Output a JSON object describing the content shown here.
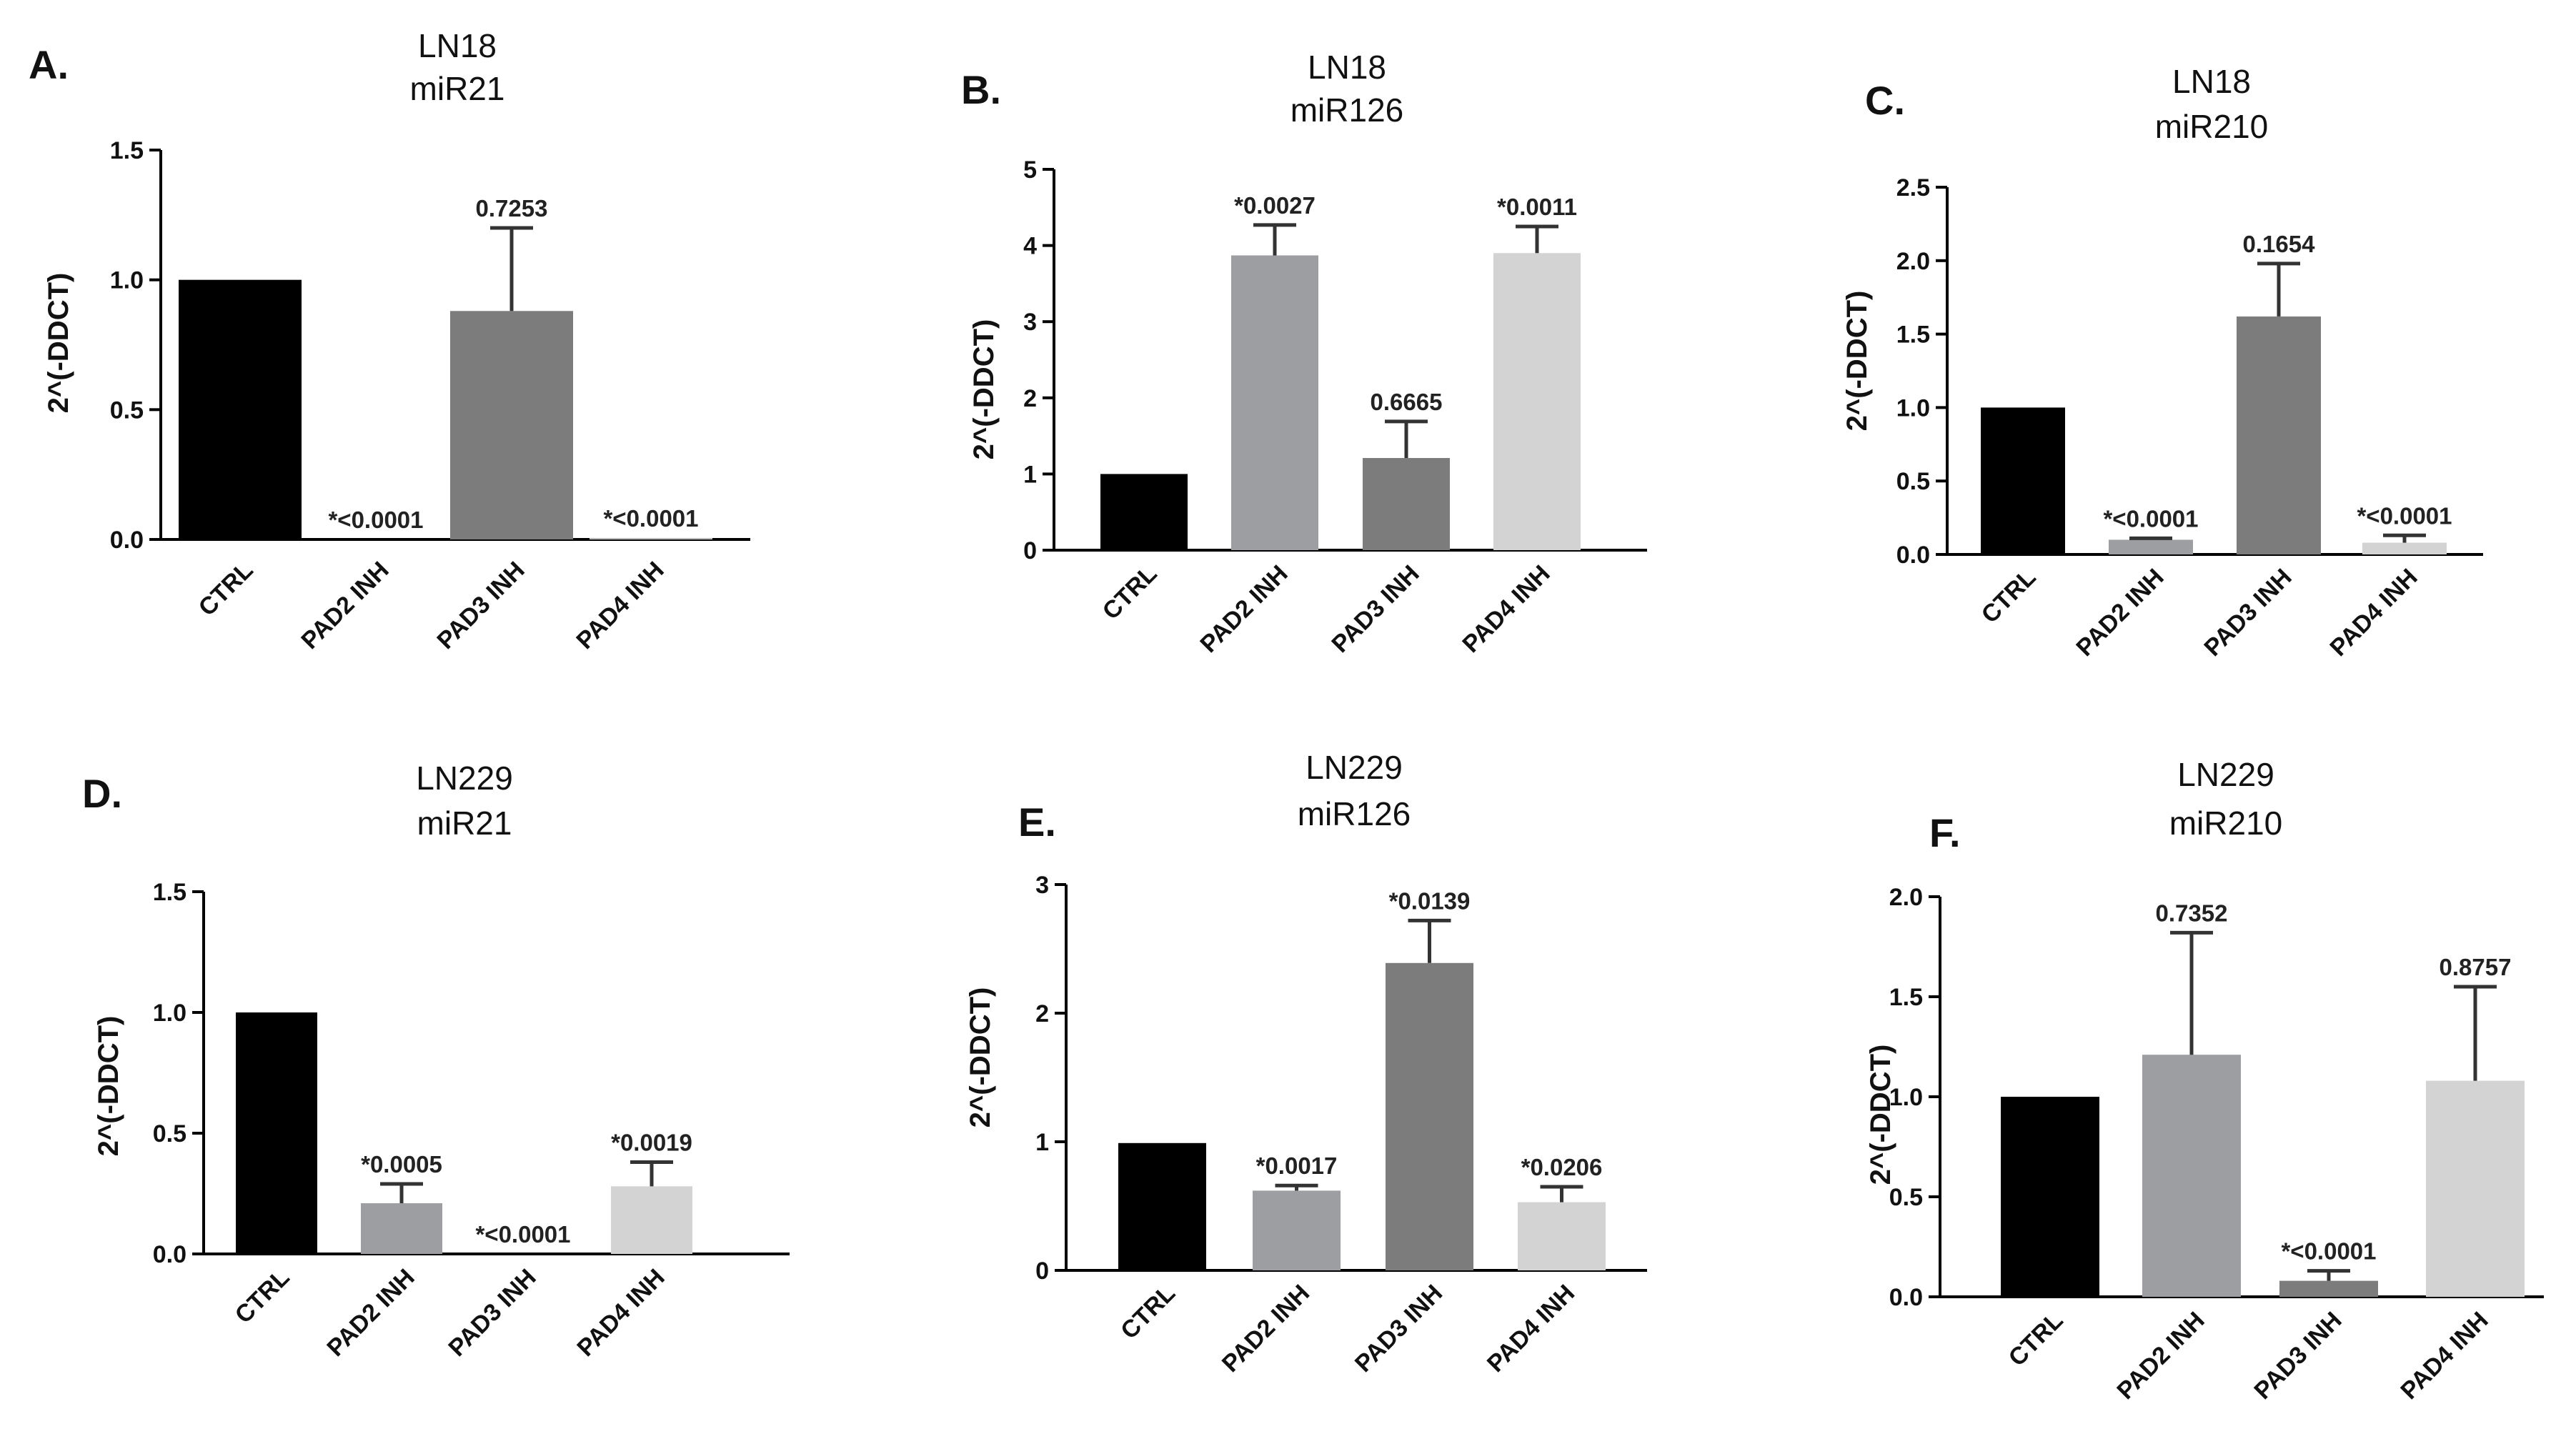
{
  "figure": {
    "background": "#ffffff",
    "axis_color": "#000000"
  },
  "chart_data": [
    {
      "panel": "A.",
      "type": "bar",
      "title": "LN18",
      "subtitle": "miR21",
      "ylabel": "2^(-DDCT)",
      "xlabel": "",
      "ylim": [
        0,
        1.5
      ],
      "yticks": [
        0.0,
        0.5,
        1.0,
        1.5
      ],
      "ytick_labels": [
        "0.0",
        "0.5",
        "1.0",
        "1.5"
      ],
      "categories": [
        "CTRL",
        "PAD2 INH",
        "PAD3 INH",
        "PAD4 INH"
      ],
      "values": [
        1.0,
        0.0,
        0.88,
        0.005
      ],
      "errors": [
        0,
        0,
        0.32,
        0
      ],
      "bar_colors": [
        "#000000",
        "#9d9ea2",
        "#7c7c7c",
        "#d3d3d3"
      ],
      "annotations": [
        "",
        "*<0.0001",
        "0.7253",
        "*<0.0001"
      ]
    },
    {
      "panel": "B.",
      "type": "bar",
      "title": "LN18",
      "subtitle": "miR126",
      "ylabel": "2^(-DDCT)",
      "xlabel": "",
      "ylim": [
        0,
        5
      ],
      "yticks": [
        0,
        1,
        2,
        3,
        4,
        5
      ],
      "ytick_labels": [
        "0",
        "1",
        "2",
        "3",
        "4",
        "5"
      ],
      "categories": [
        "CTRL",
        "PAD2 INH",
        "PAD3 INH",
        "PAD4 INH"
      ],
      "values": [
        1.0,
        3.87,
        1.21,
        3.9
      ],
      "errors": [
        0,
        0.4,
        0.48,
        0.35
      ],
      "bar_colors": [
        "#000000",
        "#9d9ea2",
        "#7c7c7c",
        "#d3d3d3"
      ],
      "annotations": [
        "",
        "*0.0027",
        "0.6665",
        "*0.0011"
      ]
    },
    {
      "panel": "C.",
      "type": "bar",
      "title": "LN18",
      "subtitle": "miR210",
      "ylabel": "2^(-DDCT)",
      "xlabel": "",
      "ylim": [
        0,
        2.5
      ],
      "yticks": [
        0.0,
        0.5,
        1.0,
        1.5,
        2.0,
        2.5
      ],
      "ytick_labels": [
        "0.0",
        "0.5",
        "1.0",
        "1.5",
        "2.0",
        "2.5"
      ],
      "categories": [
        "CTRL",
        "PAD2 INH",
        "PAD3 INH",
        "PAD4 INH"
      ],
      "values": [
        1.0,
        0.1,
        1.62,
        0.08
      ],
      "errors": [
        0,
        0.01,
        0.36,
        0.05
      ],
      "bar_colors": [
        "#000000",
        "#9d9ea2",
        "#7c7c7c",
        "#d3d3d3"
      ],
      "annotations": [
        "",
        "*<0.0001",
        "0.1654",
        "*<0.0001"
      ]
    },
    {
      "panel": "D.",
      "type": "bar",
      "title": "LN229",
      "subtitle": "miR21",
      "ylabel": "2^(-DDCT)",
      "xlabel": "",
      "ylim": [
        0,
        1.5
      ],
      "yticks": [
        0.0,
        0.5,
        1.0,
        1.5
      ],
      "ytick_labels": [
        "0.0",
        "0.5",
        "1.0",
        "1.5"
      ],
      "categories": [
        "CTRL",
        "PAD2 INH",
        "PAD3 INH",
        "PAD4 INH"
      ],
      "values": [
        1.0,
        0.21,
        0.0,
        0.28
      ],
      "errors": [
        0,
        0.08,
        0,
        0.1
      ],
      "bar_colors": [
        "#000000",
        "#9d9ea2",
        "#7c7c7c",
        "#d3d3d3"
      ],
      "annotations": [
        "",
        "*0.0005",
        "*<0.0001",
        "*0.0019"
      ]
    },
    {
      "panel": "E.",
      "type": "bar",
      "title": "LN229",
      "subtitle": "miR126",
      "ylabel": "2^(-DDCT)",
      "xlabel": "",
      "ylim": [
        0,
        3
      ],
      "yticks": [
        0,
        1,
        2,
        3
      ],
      "ytick_labels": [
        "0",
        "1",
        "2",
        "3"
      ],
      "categories": [
        "CTRL",
        "PAD2 INH",
        "PAD3 INH",
        "PAD4 INH"
      ],
      "values": [
        0.99,
        0.62,
        2.39,
        0.53
      ],
      "errors": [
        0,
        0.04,
        0.33,
        0.12
      ],
      "bar_colors": [
        "#000000",
        "#9d9ea2",
        "#7c7c7c",
        "#d3d3d3"
      ],
      "annotations": [
        "",
        "*0.0017",
        "*0.0139",
        "*0.0206"
      ]
    },
    {
      "panel": "F.",
      "type": "bar",
      "title": "LN229",
      "subtitle": "miR210",
      "ylabel": "2^(-DDCT)",
      "xlabel": "",
      "ylim": [
        0,
        2.0
      ],
      "yticks": [
        0.0,
        0.5,
        1.0,
        1.5,
        2.0
      ],
      "ytick_labels": [
        "0.0",
        "0.5",
        "1.0",
        "1.5",
        "2.0"
      ],
      "categories": [
        "CTRL",
        "PAD2 INH",
        "PAD3 INH",
        "PAD4 INH"
      ],
      "values": [
        1.0,
        1.21,
        0.08,
        1.08
      ],
      "errors": [
        0,
        0.61,
        0.05,
        0.47
      ],
      "bar_colors": [
        "#000000",
        "#9d9ea2",
        "#7c7c7c",
        "#d3d3d3"
      ],
      "annotations": [
        "",
        "0.7352",
        "*<0.0001",
        "0.8757"
      ]
    }
  ]
}
